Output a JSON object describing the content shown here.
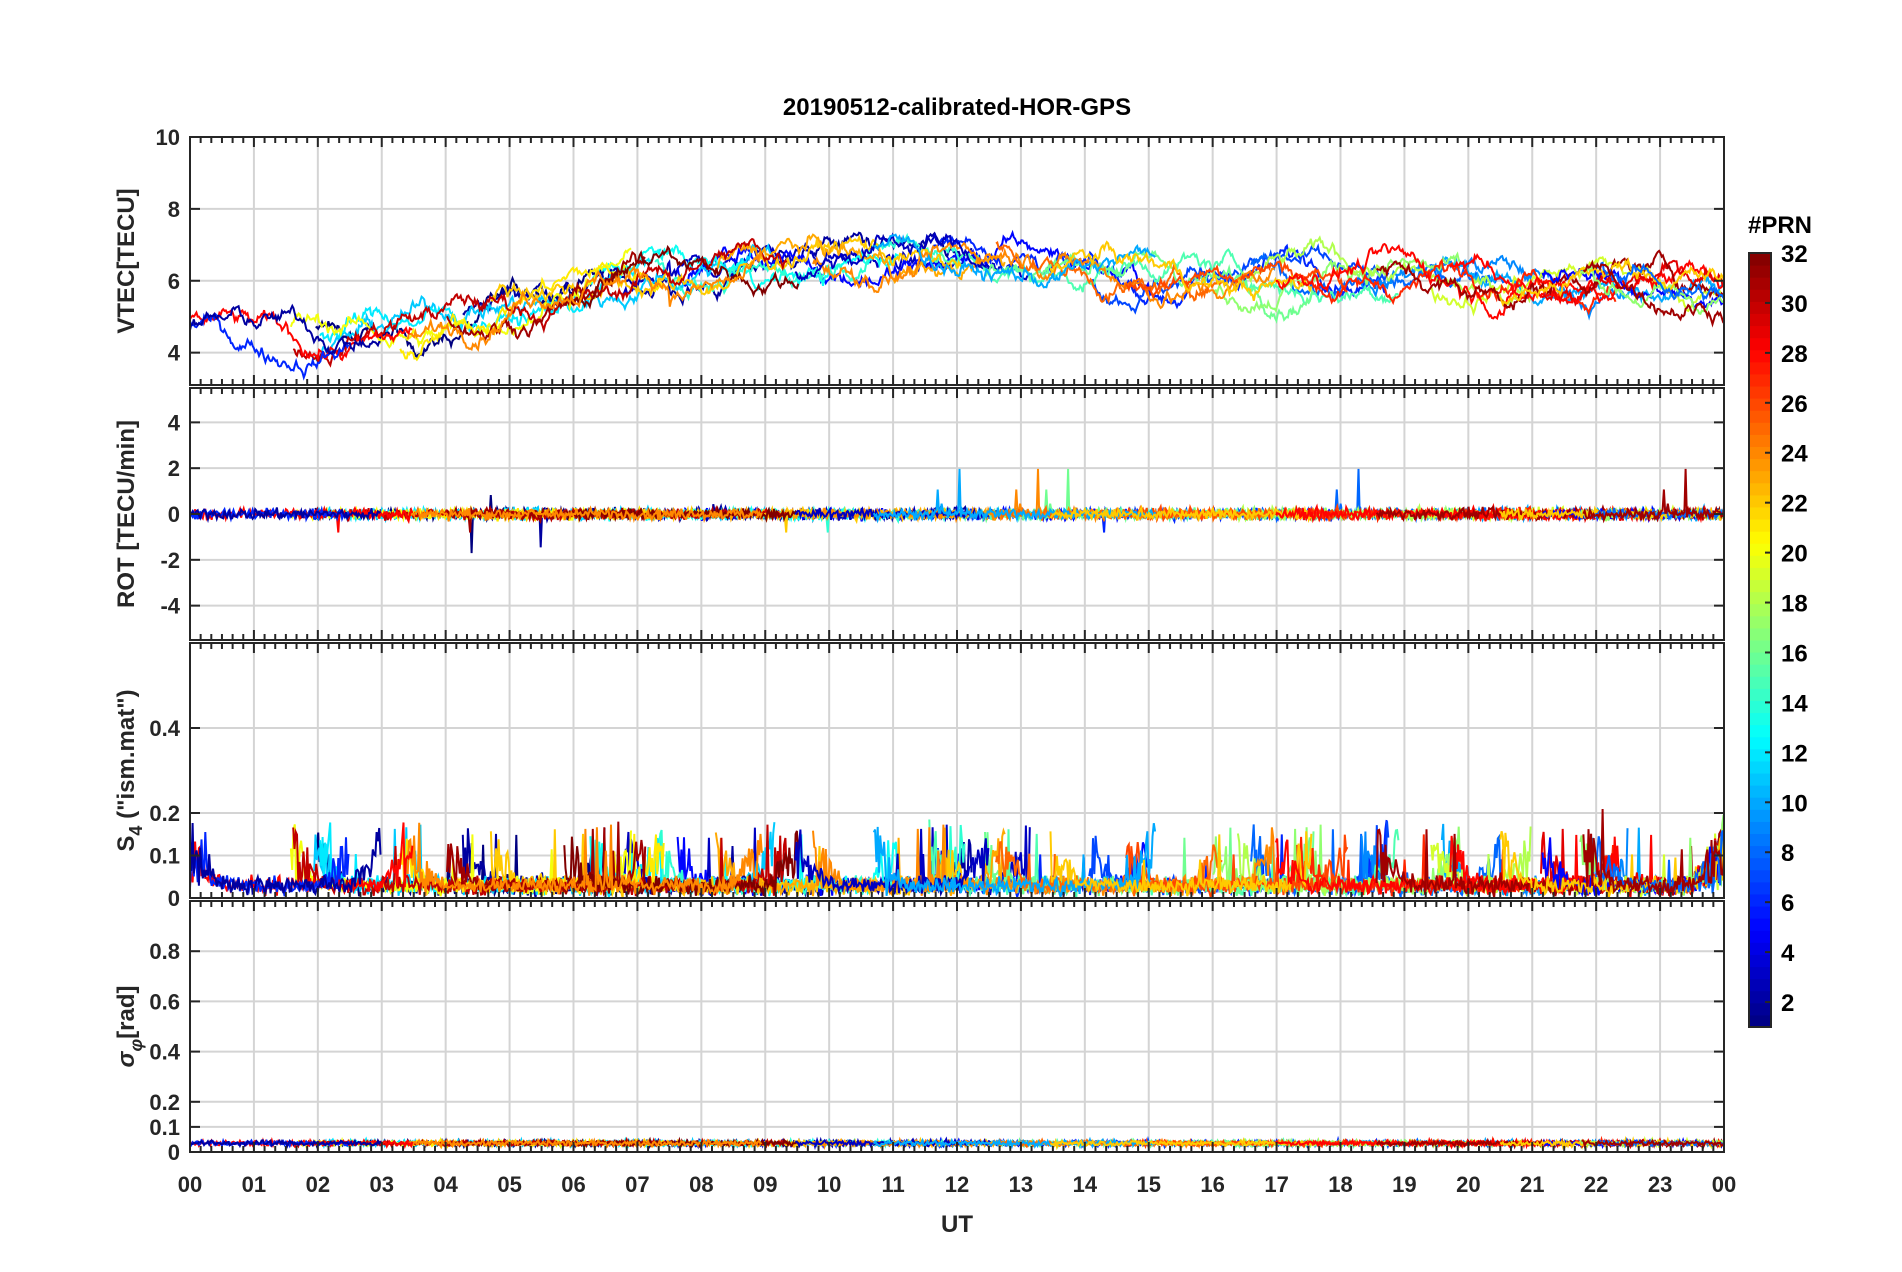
{
  "figure": {
    "title": "20190512-calibrated-HOR-GPS"
  },
  "chart_data": [
    {
      "id": "vtec",
      "type": "line",
      "ylabel": "VTEC[TECU]",
      "ylim": [
        3.1,
        10
      ],
      "yticks": [
        4,
        6,
        8,
        10
      ],
      "ytick_labels": [
        "4",
        "6",
        "8",
        "10"
      ],
      "xlim": [
        0,
        24
      ],
      "grid": true,
      "series_profile": "vtec"
    },
    {
      "id": "rot",
      "type": "line",
      "ylabel": "ROT [TECU/min]",
      "ylim": [
        -5.5,
        5.5
      ],
      "yticks": [
        -4,
        -2,
        0,
        2,
        4
      ],
      "ytick_labels": [
        "-4",
        "-2",
        "0",
        "2",
        "4"
      ],
      "xlim": [
        0,
        24
      ],
      "grid": true,
      "series_profile": "rot"
    },
    {
      "id": "s4",
      "type": "line",
      "ylabel_main": "S",
      "ylabel_sub": "4",
      "ylabel_rest": " (\"ism.mat\")",
      "ylim": [
        0,
        0.6
      ],
      "yticks": [
        0,
        0.1,
        0.2,
        0.4
      ],
      "ytick_labels": [
        "0",
        "0.1",
        "0.2",
        "0.4"
      ],
      "xlim": [
        0,
        24
      ],
      "grid": true,
      "series_profile": "s4"
    },
    {
      "id": "sigma",
      "type": "line",
      "ylabel_main": "σ",
      "ylabel_sub": "φ",
      "ylabel_rest": "[rad]",
      "ylim": [
        0,
        1
      ],
      "yticks": [
        0,
        0.1,
        0.2,
        0.4,
        0.6,
        0.8
      ],
      "ytick_labels": [
        "0",
        "0.1",
        "0.2",
        "0.4",
        "0.6",
        "0.8"
      ],
      "xlim": [
        0,
        24
      ],
      "grid": true,
      "series_profile": "sigma"
    }
  ],
  "xaxis": {
    "label": "UT",
    "range": [
      0,
      24
    ],
    "ticks": [
      0,
      1,
      2,
      3,
      4,
      5,
      6,
      7,
      8,
      9,
      10,
      11,
      12,
      13,
      14,
      15,
      16,
      17,
      18,
      19,
      20,
      21,
      22,
      23,
      24
    ],
    "tick_labels": [
      "00",
      "01",
      "02",
      "03",
      "04",
      "05",
      "06",
      "07",
      "08",
      "09",
      "10",
      "11",
      "12",
      "13",
      "14",
      "15",
      "16",
      "17",
      "18",
      "19",
      "20",
      "21",
      "22",
      "23",
      "00"
    ]
  },
  "colorbar": {
    "label": "#PRN",
    "range": [
      1,
      32
    ],
    "ticks": [
      2,
      4,
      6,
      8,
      10,
      12,
      14,
      16,
      18,
      20,
      22,
      24,
      26,
      28,
      30,
      32
    ],
    "tick_labels": [
      "2",
      "4",
      "6",
      "8",
      "10",
      "12",
      "14",
      "16",
      "18",
      "20",
      "22",
      "24",
      "26",
      "28",
      "30",
      "32"
    ],
    "colormap": "jet"
  }
}
